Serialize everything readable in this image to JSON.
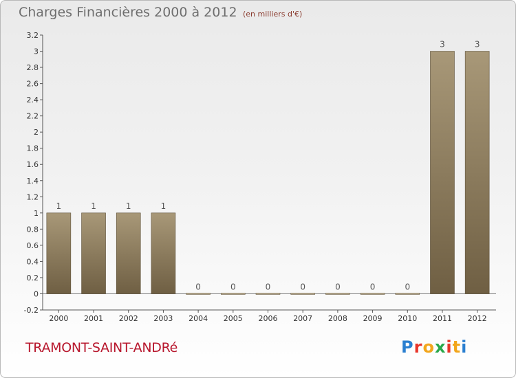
{
  "header": {
    "title": "Charges Financières 2000 à 2012",
    "subtitle": "(en milliers d'€)"
  },
  "footer": {
    "commune": "TRAMONT-SAINT-ANDRé",
    "brand_letters": [
      "P",
      "r",
      "o",
      "x",
      "i",
      "t",
      "i"
    ],
    "brand_colors": [
      "#2a7fd0",
      "#e8352a",
      "#f2a61c",
      "#2aa84a",
      "#e8352a",
      "#f2a61c",
      "#2a7fd0"
    ]
  },
  "colors": {
    "bar_top": "#a89878",
    "bar_bottom": "#6f5f43",
    "axis": "#555555",
    "label": "#333333"
  },
  "chart_data": {
    "type": "bar",
    "title": "Charges Financières 2000 à 2012",
    "subtitle": "(en milliers d'€)",
    "categories": [
      "2000",
      "2001",
      "2002",
      "2003",
      "2004",
      "2005",
      "2006",
      "2007",
      "2008",
      "2009",
      "2010",
      "2011",
      "2012"
    ],
    "values": [
      1,
      1,
      1,
      1,
      0,
      0,
      0,
      0,
      0,
      0,
      0,
      3,
      3
    ],
    "data_labels": [
      "1",
      "1",
      "1",
      "1",
      "0",
      "0",
      "0",
      "0",
      "0",
      "0",
      "0",
      "3",
      "3"
    ],
    "ylim": [
      -0.2,
      3.2
    ],
    "y_ticks": [
      -0.2,
      0,
      0.2,
      0.4,
      0.6,
      0.8,
      1,
      1.2,
      1.4,
      1.6,
      1.8,
      2,
      2.2,
      2.4,
      2.6,
      2.8,
      3,
      3.2
    ],
    "y_tick_labels": [
      "-0.2",
      "0",
      "0.2",
      "0.4",
      "0.6",
      "0.8",
      "1",
      "1.2",
      "1.4",
      "1.6",
      "1.8",
      "2",
      "2.2",
      "2.4",
      "2.6",
      "2.8",
      "3",
      "3.2"
    ],
    "xlabel": "",
    "ylabel": "",
    "grid": false,
    "legend": false
  }
}
